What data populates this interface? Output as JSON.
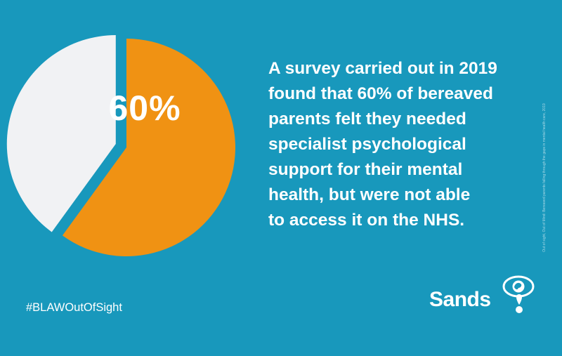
{
  "colors": {
    "background": "#1898bc",
    "primary_slice": "#f09213",
    "secondary_slice": "#f1f2f4",
    "text": "#ffffff"
  },
  "chart_data": {
    "type": "pie",
    "slices": [
      {
        "value": 60,
        "color": "#f09213",
        "label": "60%"
      },
      {
        "value": 40,
        "color": "#f1f2f4",
        "label": ""
      }
    ]
  },
  "headline": {
    "lines": [
      "A survey carried out in 2019",
      "found that 60% of bereaved",
      "parents felt they needed",
      "specialist psychological",
      "support for their mental",
      "health, but were not able",
      "to access it on the NHS."
    ]
  },
  "source_note": "Out of sight, Out of Mind: Bereaved parents falling through the gaps in mental health care, 2019",
  "hashtag": "#BLAWOutOfSight",
  "logo": {
    "text": "Sands",
    "icon": "sands-eye-tear-icon"
  }
}
